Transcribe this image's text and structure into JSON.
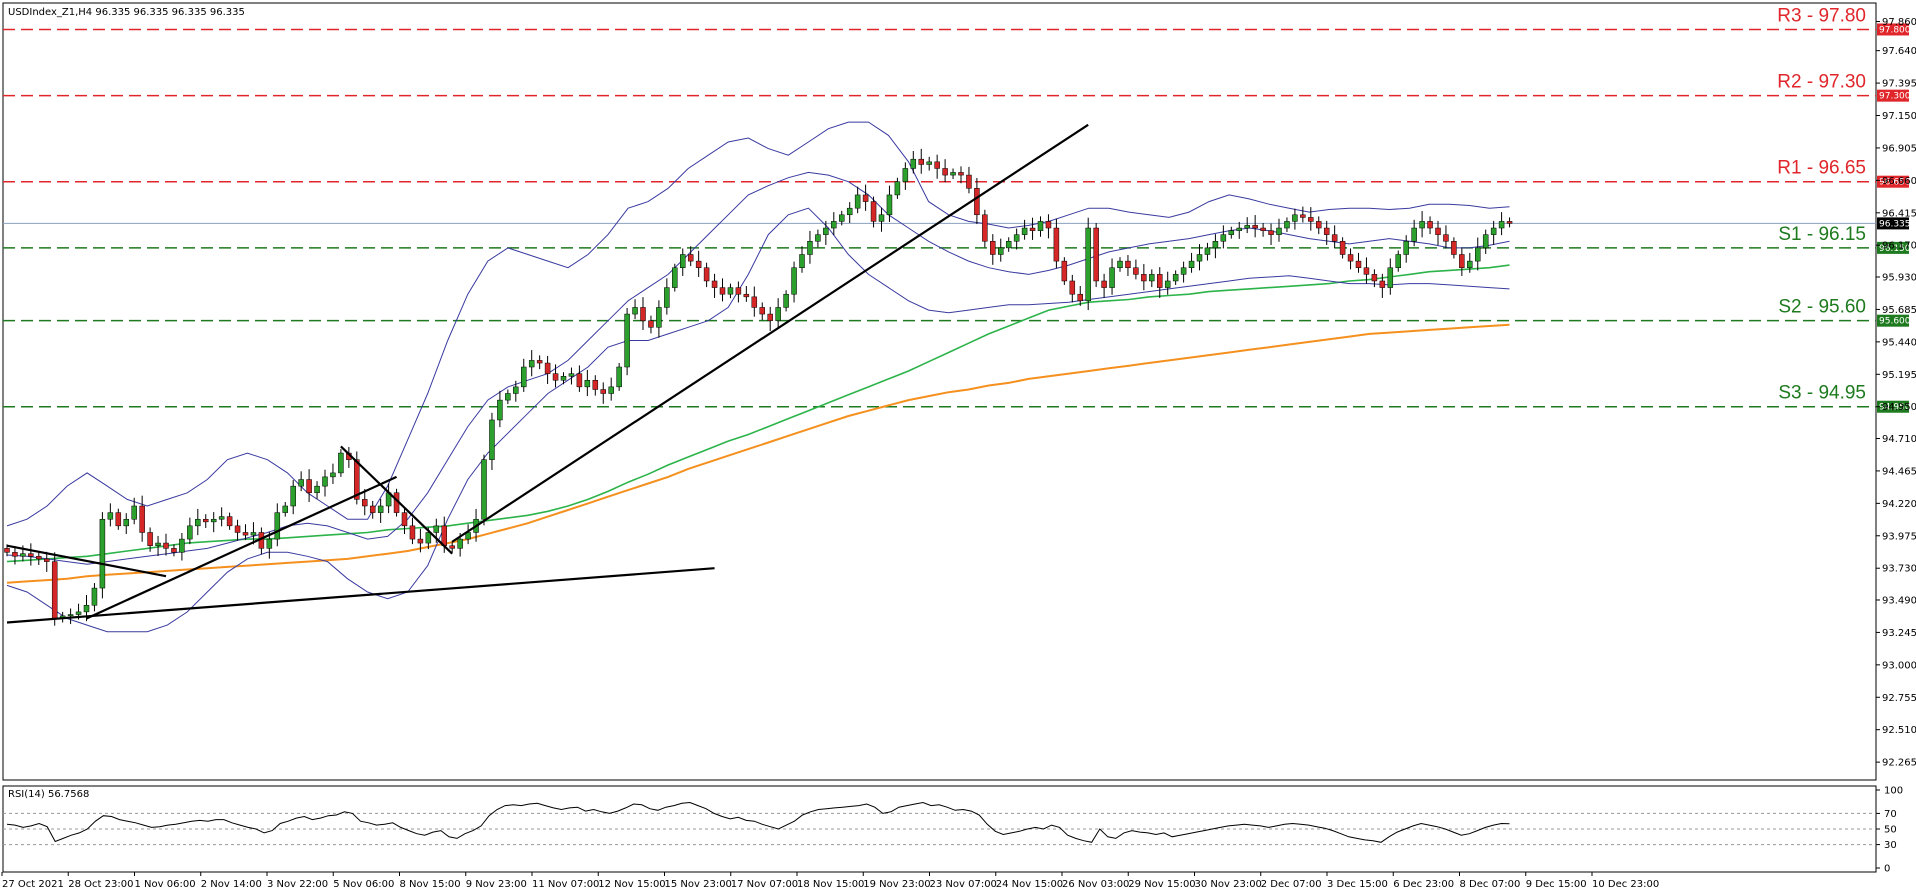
{
  "chart_data": [
    {
      "type": "candlestick",
      "info_label": "USDIndex_Z1,H4  96.335 96.335 96.335 96.335",
      "symbol": "USDIndex_Z1",
      "timeframe": "H4",
      "last_price": 96.335,
      "last_price_label": "96.335",
      "ylim": [
        92.13,
        98.0
      ],
      "y_ticks": [
        "97.860",
        "97.640",
        "97.395",
        "97.150",
        "96.905",
        "96.660",
        "96.415",
        "96.170",
        "95.930",
        "95.685",
        "95.440",
        "95.195",
        "94.950",
        "94.710",
        "94.465",
        "94.220",
        "93.975",
        "93.730",
        "93.490",
        "93.245",
        "93.000",
        "92.755",
        "92.510",
        "92.265"
      ],
      "x_labels": [
        "27 Oct 2021",
        "28 Oct 23:00",
        "1 Nov 06:00",
        "2 Nov 14:00",
        "3 Nov 22:00",
        "5 Nov 06:00",
        "8 Nov 15:00",
        "9 Nov 23:00",
        "11 Nov 07:00",
        "12 Nov 15:00",
        "15 Nov 23:00",
        "17 Nov 07:00",
        "18 Nov 15:00",
        "19 Nov 23:00",
        "23 Nov 07:00",
        "24 Nov 15:00",
        "26 Nov 03:00",
        "29 Nov 15:00",
        "30 Nov 23:00",
        "2 Dec 07:00",
        "3 Dec 15:00",
        "6 Dec 23:00",
        "8 Dec 07:00",
        "9 Dec 15:00",
        "10 Dec 23:00"
      ],
      "levels": [
        {
          "name": "R3",
          "value": 97.8,
          "label": "R3 - 97.80",
          "tag": "97.800",
          "color": "#e0262b"
        },
        {
          "name": "R2",
          "value": 97.3,
          "label": "R2 - 97.30",
          "tag": "97.300",
          "color": "#e0262b"
        },
        {
          "name": "R1",
          "value": 96.65,
          "label": "R1 - 96.65",
          "tag": "96.650",
          "color": "#e0262b"
        },
        {
          "name": "S1",
          "value": 96.15,
          "label": "S1 - 96.15",
          "tag": "96.150",
          "color": "#1e7a1e"
        },
        {
          "name": "S2",
          "value": 95.6,
          "label": "S2 - 95.60",
          "tag": "95.600",
          "color": "#1e7a1e"
        },
        {
          "name": "S3",
          "value": 94.95,
          "label": "S3 - 94.95",
          "tag": "94.950",
          "color": "#1e7a1e"
        }
      ],
      "colors": {
        "bull": "#2ca02c",
        "bear": "#d62728",
        "bollinger": "#3a3aa0",
        "ma_green": "#2cb34a",
        "ma_orange": "#f5901e",
        "trendline": "#000000",
        "price_line": "#8aa0c0"
      },
      "trendlines": [
        {
          "start": [
            0,
            93.32
          ],
          "end": [
            89,
            93.73
          ]
        },
        {
          "start": [
            0,
            93.9
          ],
          "end": [
            20,
            93.67
          ]
        },
        {
          "start": [
            10,
            93.35
          ],
          "end": [
            49,
            94.42
          ]
        },
        {
          "start": [
            42,
            94.65
          ],
          "end": [
            56,
            93.84
          ]
        },
        {
          "start": [
            56,
            93.93
          ],
          "end": [
            136,
            97.08
          ]
        }
      ],
      "series": [
        {
          "name": "Close",
          "values": [
            93.85,
            93.82,
            93.84,
            93.82,
            93.8,
            93.78,
            93.35,
            93.37,
            93.38,
            93.4,
            93.45,
            93.58,
            94.1,
            94.15,
            94.05,
            94.1,
            94.2,
            94.0,
            93.9,
            93.92,
            93.88,
            93.85,
            93.95,
            94.05,
            94.1,
            94.08,
            94.1,
            94.12,
            94.05,
            94.0,
            93.98,
            94.0,
            93.88,
            93.95,
            94.15,
            94.2,
            94.35,
            94.4,
            94.3,
            94.35,
            94.42,
            94.45,
            94.6,
            94.55,
            94.25,
            94.2,
            94.15,
            94.2,
            94.3,
            94.15,
            94.05,
            93.95,
            93.92,
            94.0,
            94.05,
            93.9,
            93.88,
            93.95,
            94.0,
            94.1,
            94.55,
            94.85,
            95.0,
            95.05,
            95.1,
            95.25,
            95.3,
            95.28,
            95.2,
            95.15,
            95.18,
            95.2,
            95.1,
            95.15,
            95.08,
            95.05,
            95.1,
            95.25,
            95.65,
            95.7,
            95.6,
            95.55,
            95.7,
            95.85,
            96.0,
            96.1,
            96.05,
            96.0,
            95.9,
            95.85,
            95.8,
            95.85,
            95.8,
            95.78,
            95.7,
            95.65,
            95.6,
            95.7,
            95.8,
            96.0,
            96.1,
            96.2,
            96.25,
            96.3,
            96.35,
            96.4,
            96.45,
            96.55,
            96.5,
            96.35,
            96.4,
            96.55,
            96.65,
            96.75,
            96.82,
            96.78,
            96.8,
            96.75,
            96.7,
            96.72,
            96.7,
            96.6,
            96.4,
            96.2,
            96.1,
            96.15,
            96.2,
            96.25,
            96.3,
            96.28,
            96.35,
            96.3,
            96.05,
            95.9,
            95.8,
            95.75,
            96.3,
            95.9,
            95.85,
            96.0,
            96.05,
            96.0,
            95.95,
            95.9,
            95.95,
            95.85,
            95.9,
            95.95,
            96.0,
            96.05,
            96.1,
            96.15,
            96.2,
            96.25,
            96.28,
            96.3,
            96.32,
            96.3,
            96.28,
            96.25,
            96.3,
            96.35,
            96.4,
            96.38,
            96.35,
            96.3,
            96.25,
            96.2,
            96.1,
            96.05,
            96.0,
            95.95,
            95.9,
            95.85,
            96.0,
            96.1,
            96.2,
            96.3,
            96.35,
            96.3,
            96.25,
            96.2,
            96.1,
            96.0,
            96.05,
            96.15,
            96.25,
            96.3,
            96.35,
            96.335
          ]
        },
        {
          "name": "MA-green",
          "values": [
            93.78,
            93.79,
            93.8,
            93.81,
            93.82,
            93.84,
            93.86,
            93.88,
            93.9,
            93.92,
            93.93,
            93.94,
            93.95,
            93.95,
            93.96,
            93.97,
            93.98,
            93.99,
            94.0,
            94.02,
            94.03,
            94.04,
            94.05,
            94.07,
            94.09,
            94.11,
            94.13,
            94.16,
            94.2,
            94.25,
            94.31,
            94.38,
            94.44,
            94.51,
            94.57,
            94.63,
            94.69,
            94.74,
            94.8,
            94.86,
            94.92,
            94.98,
            95.04,
            95.1,
            95.16,
            95.22,
            95.29,
            95.36,
            95.43,
            95.5,
            95.56,
            95.62,
            95.68,
            95.71,
            95.74,
            95.75,
            95.76,
            95.78,
            95.79,
            95.8,
            95.82,
            95.83,
            95.84,
            95.85,
            95.86,
            95.87,
            95.88,
            95.9,
            95.91,
            95.93,
            95.95,
            95.97,
            95.98,
            95.99,
            96.0,
            96.02
          ]
        },
        {
          "name": "MA-orange",
          "values": [
            93.62,
            93.63,
            93.64,
            93.65,
            93.67,
            93.68,
            93.69,
            93.7,
            93.71,
            93.72,
            93.73,
            93.74,
            93.75,
            93.76,
            93.77,
            93.78,
            93.79,
            93.8,
            93.82,
            93.84,
            93.86,
            93.89,
            93.92,
            93.95,
            93.99,
            94.03,
            94.07,
            94.12,
            94.17,
            94.22,
            94.27,
            94.32,
            94.37,
            94.42,
            94.48,
            94.53,
            94.58,
            94.63,
            94.68,
            94.73,
            94.78,
            94.83,
            94.88,
            94.92,
            94.96,
            95.0,
            95.03,
            95.06,
            95.08,
            95.11,
            95.13,
            95.16,
            95.18,
            95.2,
            95.22,
            95.24,
            95.26,
            95.28,
            95.3,
            95.32,
            95.34,
            95.36,
            95.38,
            95.4,
            95.42,
            95.44,
            95.46,
            95.48,
            95.5,
            95.51,
            95.52,
            95.53,
            95.54,
            95.55,
            95.56,
            95.57
          ]
        },
        {
          "name": "BB-upper",
          "values": [
            94.05,
            94.1,
            94.2,
            94.35,
            94.45,
            94.35,
            94.25,
            94.2,
            94.25,
            94.3,
            94.4,
            94.55,
            94.6,
            94.55,
            94.45,
            94.3,
            94.2,
            94.1,
            94.1,
            94.35,
            94.7,
            95.05,
            95.45,
            95.8,
            96.05,
            96.15,
            96.1,
            96.05,
            96.0,
            96.1,
            96.25,
            96.45,
            96.5,
            96.6,
            96.75,
            96.85,
            96.95,
            96.98,
            96.9,
            96.85,
            96.95,
            97.05,
            97.1,
            97.1,
            97.0,
            96.8,
            96.5,
            96.4,
            96.35,
            96.33,
            96.3,
            96.32,
            96.35,
            96.4,
            96.45,
            96.45,
            96.42,
            96.4,
            96.38,
            96.42,
            96.5,
            96.55,
            96.52,
            96.48,
            96.45,
            96.42,
            96.44,
            96.45,
            96.45,
            96.44,
            96.45,
            96.48,
            96.48,
            96.47,
            96.45,
            96.46
          ]
        },
        {
          "name": "BB-mid",
          "values": [
            93.83,
            93.82,
            93.8,
            93.78,
            93.76,
            93.78,
            93.8,
            93.82,
            93.84,
            93.86,
            93.88,
            93.92,
            93.96,
            94.0,
            94.05,
            94.07,
            94.05,
            94.0,
            93.95,
            93.97,
            94.1,
            94.3,
            94.55,
            94.8,
            95.0,
            95.1,
            95.15,
            95.2,
            95.3,
            95.45,
            95.6,
            95.75,
            95.85,
            95.95,
            96.1,
            96.25,
            96.4,
            96.55,
            96.62,
            96.68,
            96.72,
            96.7,
            96.65,
            96.55,
            96.4,
            96.3,
            96.2,
            96.12,
            96.05,
            96.0,
            95.97,
            95.95,
            95.98,
            96.02,
            96.07,
            96.12,
            96.15,
            96.18,
            96.2,
            96.22,
            96.25,
            96.28,
            96.3,
            96.28,
            96.25,
            96.22,
            96.2,
            96.18,
            96.2,
            96.22,
            96.2,
            96.18,
            96.15,
            96.15,
            96.17,
            96.2
          ]
        },
        {
          "name": "BB-lower",
          "values": [
            93.6,
            93.55,
            93.45,
            93.35,
            93.3,
            93.25,
            93.25,
            93.25,
            93.3,
            93.4,
            93.55,
            93.7,
            93.8,
            93.85,
            93.85,
            93.82,
            93.78,
            93.65,
            93.55,
            93.5,
            93.55,
            93.75,
            94.1,
            94.4,
            94.6,
            94.75,
            94.9,
            95.05,
            95.15,
            95.25,
            95.4,
            95.45,
            95.45,
            95.5,
            95.55,
            95.6,
            95.7,
            95.95,
            96.25,
            96.4,
            96.45,
            96.3,
            96.1,
            95.95,
            95.85,
            95.75,
            95.68,
            95.66,
            95.68,
            95.7,
            95.72,
            95.72,
            95.73,
            95.74,
            95.76,
            95.78,
            95.8,
            95.82,
            95.84,
            95.86,
            95.88,
            95.9,
            95.92,
            95.93,
            95.94,
            95.92,
            95.9,
            95.88,
            95.88,
            95.87,
            95.88,
            95.88,
            95.87,
            95.86,
            95.85,
            95.84
          ]
        }
      ]
    },
    {
      "type": "line",
      "title": "RSI(14) 56.7568",
      "ylim": [
        0,
        100
      ],
      "y_ticks": [
        "100",
        "70",
        "50",
        "30",
        "0"
      ],
      "levels": [
        70,
        50,
        30
      ],
      "series": [
        {
          "name": "RSI(14)",
          "values": [
            56,
            55,
            52,
            54,
            57,
            53,
            34,
            38,
            42,
            45,
            50,
            60,
            67,
            66,
            62,
            60,
            58,
            55,
            52,
            53,
            55,
            56,
            58,
            60,
            61,
            60,
            62,
            62,
            58,
            55,
            52,
            50,
            45,
            48,
            57,
            60,
            64,
            66,
            62,
            64,
            67,
            68,
            72,
            70,
            60,
            58,
            55,
            56,
            58,
            52,
            48,
            44,
            42,
            46,
            48,
            40,
            38,
            44,
            48,
            54,
            67,
            75,
            80,
            81,
            80,
            82,
            83,
            80,
            77,
            75,
            77,
            78,
            73,
            75,
            72,
            70,
            73,
            77,
            82,
            81,
            76,
            74,
            78,
            80,
            83,
            84,
            80,
            76,
            70,
            66,
            63,
            65,
            61,
            60,
            56,
            53,
            50,
            55,
            60,
            68,
            72,
            75,
            76,
            77,
            78,
            79,
            80,
            82,
            78,
            70,
            72,
            78,
            80,
            82,
            84,
            80,
            81,
            78,
            74,
            75,
            73,
            68,
            56,
            47,
            43,
            45,
            47,
            50,
            52,
            50,
            55,
            52,
            42,
            38,
            35,
            33,
            50,
            40,
            38,
            45,
            48,
            46,
            45,
            43,
            45,
            40,
            42,
            44,
            46,
            48,
            50,
            52,
            54,
            55,
            56,
            55,
            54,
            52,
            54,
            56,
            57,
            56,
            55,
            53,
            51,
            48,
            44,
            40,
            38,
            36,
            35,
            33,
            40,
            46,
            50,
            54,
            57,
            55,
            53,
            50,
            46,
            42,
            44,
            48,
            52,
            55,
            57,
            56.76
          ]
        }
      ]
    }
  ]
}
